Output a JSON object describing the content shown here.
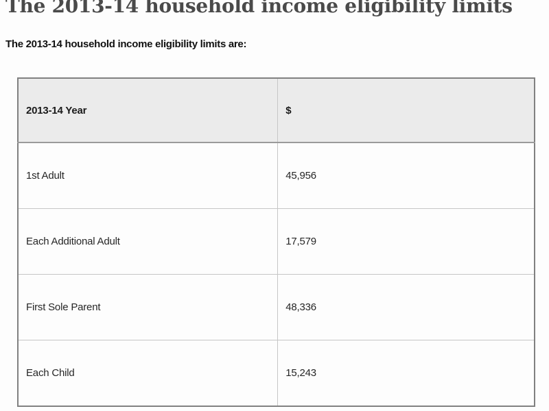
{
  "page": {
    "heading": "The 2013-14 household income eligibility limits",
    "intro": "The 2013-14 household income eligibility limits are:"
  },
  "table": {
    "columns": [
      "2013-14 Year",
      "$"
    ],
    "rows": [
      {
        "label": "1st Adult",
        "amount": "45,956"
      },
      {
        "label": "Each Additional Adult",
        "amount": "17,579"
      },
      {
        "label": "First Sole Parent",
        "amount": "48,336"
      },
      {
        "label": "Each Child",
        "amount": "15,243"
      }
    ]
  },
  "colors": {
    "heading_text": "#4a4a4a",
    "body_text": "#262626",
    "header_row_bg": "#ebebeb",
    "table_outer_border": "#808080",
    "table_inner_border": "#c6c6c6",
    "page_bg": "#fdfdfd"
  },
  "chart_data": {
    "type": "table",
    "title": "The 2013-14 household income eligibility limits",
    "columns": [
      "2013-14 Year",
      "$"
    ],
    "rows": [
      [
        "1st Adult",
        45956
      ],
      [
        "Each Additional Adult",
        17579
      ],
      [
        "First Sole Parent",
        48336
      ],
      [
        "Each Child",
        15243
      ]
    ]
  }
}
